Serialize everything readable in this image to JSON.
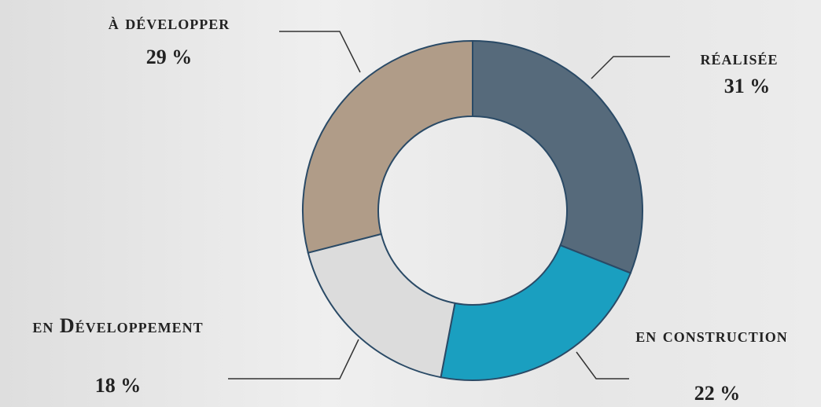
{
  "chart_data": {
    "type": "donut",
    "categories": [
      "réalisée",
      "en construction",
      "en Développement",
      "à développer"
    ],
    "values": [
      31,
      22,
      18,
      29
    ],
    "value_labels": [
      "31 %",
      "22 %",
      "18 %",
      "29 %"
    ],
    "colors": [
      "#566a7b",
      "#1a9fc0",
      "#dcdcdc",
      "#b09c88"
    ]
  }
}
